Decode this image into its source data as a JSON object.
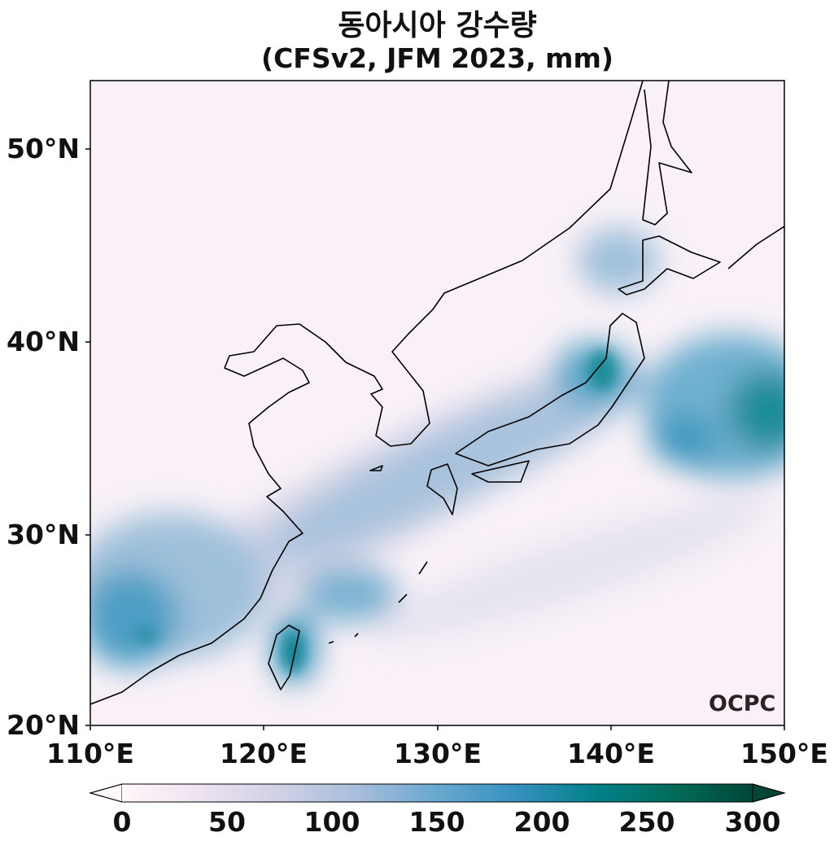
{
  "title": "동아시아 강수량",
  "subtitle": "(CFSv2, JFM 2023, mm)",
  "map": {
    "extent": {
      "lon": [
        110,
        150
      ],
      "lat": [
        20,
        53.5
      ]
    },
    "lat_ticks": [
      "50°N",
      "40°N",
      "30°N",
      "20°N"
    ],
    "lon_ticks": [
      "110°E",
      "120°E",
      "130°E",
      "140°E",
      "150°E"
    ],
    "logo": "OCPC"
  },
  "colorbar": {
    "colormap": "PuBuGn",
    "colors": [
      "#fff7fb",
      "#ece2f0",
      "#d0d1e6",
      "#a6bddb",
      "#67a9cf",
      "#3690c0",
      "#02818a",
      "#016c59",
      "#014636"
    ],
    "extend": "both",
    "ticks": [
      "0",
      "50",
      "100",
      "150",
      "200",
      "250",
      "300"
    ]
  }
}
